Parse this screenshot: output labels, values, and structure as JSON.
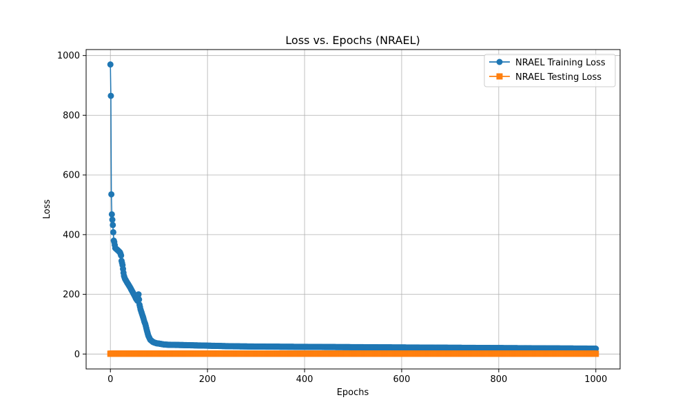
{
  "chart_data": {
    "type": "line",
    "title": "Loss vs. Epochs (NRAEL)",
    "xlabel": "Epochs",
    "ylabel": "Loss",
    "xlim": [
      -50,
      1050
    ],
    "ylim": [
      -50,
      1020
    ],
    "xticks": [
      0,
      200,
      400,
      600,
      800,
      1000
    ],
    "yticks": [
      0,
      200,
      400,
      600,
      800,
      1000
    ],
    "grid": true,
    "legend_position": "top-right",
    "series": [
      {
        "name": "NRAEL Training Loss",
        "color": "#1f77b4",
        "marker": "circle",
        "keypoints": [
          [
            0,
            970
          ],
          [
            1,
            865
          ],
          [
            2,
            535
          ],
          [
            3,
            468
          ],
          [
            4,
            450
          ],
          [
            5,
            432
          ],
          [
            6,
            408
          ],
          [
            7,
            380
          ],
          [
            8,
            375
          ],
          [
            10,
            355
          ],
          [
            15,
            348
          ],
          [
            20,
            340
          ],
          [
            22,
            330
          ],
          [
            23,
            312
          ],
          [
            25,
            298
          ],
          [
            26,
            285
          ],
          [
            27,
            272
          ],
          [
            28,
            262
          ],
          [
            30,
            252
          ],
          [
            35,
            238
          ],
          [
            40,
            225
          ],
          [
            45,
            210
          ],
          [
            50,
            195
          ],
          [
            53,
            185
          ],
          [
            56,
            178
          ],
          [
            58,
            200
          ],
          [
            60,
            165
          ],
          [
            62,
            150
          ],
          [
            65,
            135
          ],
          [
            68,
            120
          ],
          [
            70,
            108
          ],
          [
            72,
            100
          ],
          [
            75,
            80
          ],
          [
            78,
            62
          ],
          [
            82,
            48
          ],
          [
            88,
            40
          ],
          [
            95,
            36
          ],
          [
            100,
            35
          ],
          [
            110,
            32
          ],
          [
            120,
            31
          ],
          [
            150,
            30
          ],
          [
            200,
            28
          ],
          [
            250,
            26
          ],
          [
            300,
            25
          ],
          [
            400,
            24
          ],
          [
            500,
            23
          ],
          [
            600,
            22
          ],
          [
            700,
            21
          ],
          [
            800,
            20
          ],
          [
            900,
            19
          ],
          [
            1000,
            18
          ]
        ]
      },
      {
        "name": "NRAEL Testing Loss",
        "color": "#ff7f0e",
        "marker": "square",
        "keypoints": [
          [
            0,
            1
          ],
          [
            1000,
            1
          ]
        ]
      }
    ]
  }
}
